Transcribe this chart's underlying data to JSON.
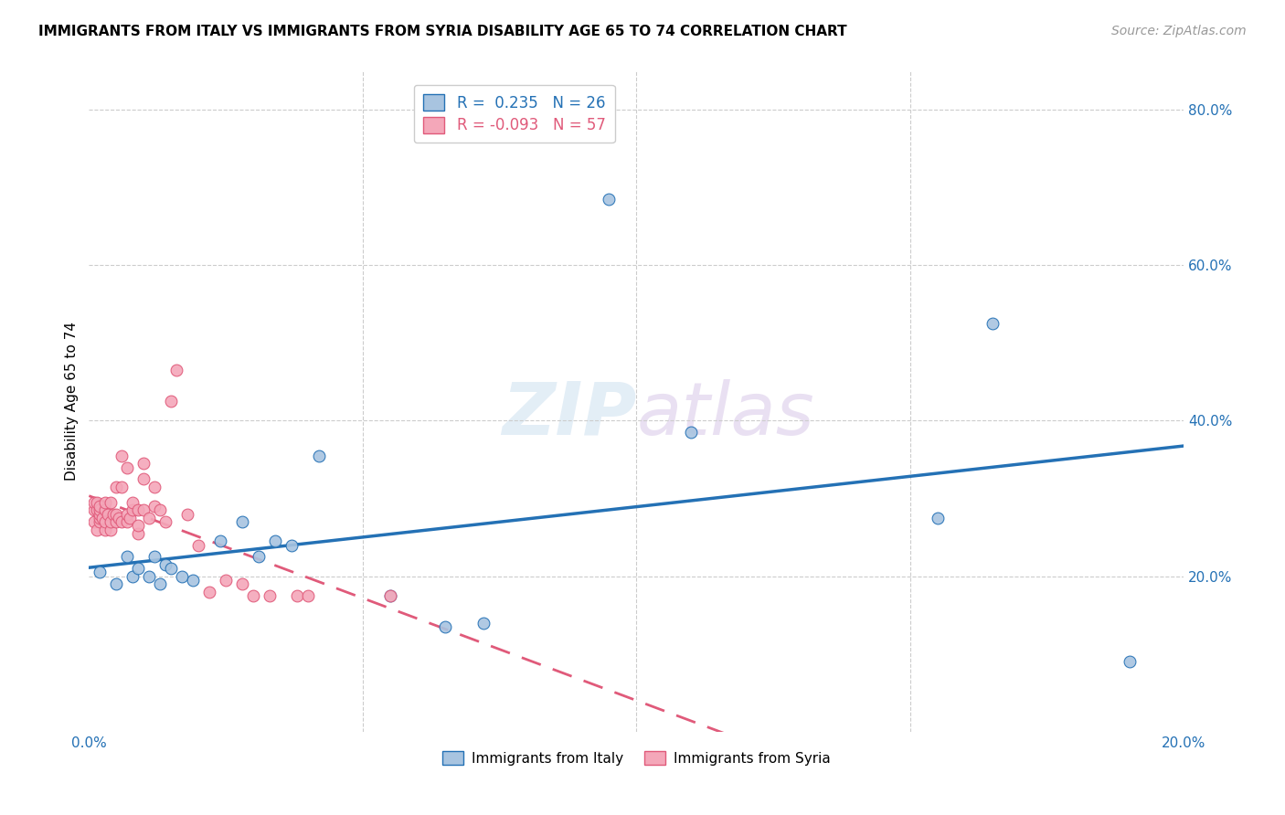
{
  "title": "IMMIGRANTS FROM ITALY VS IMMIGRANTS FROM SYRIA DISABILITY AGE 65 TO 74 CORRELATION CHART",
  "source": "Source: ZipAtlas.com",
  "ylabel": "Disability Age 65 to 74",
  "xlim": [
    0.0,
    0.2
  ],
  "ylim": [
    0.0,
    0.85
  ],
  "xticks": [
    0.0,
    0.05,
    0.1,
    0.15,
    0.2
  ],
  "yticks": [
    0.2,
    0.4,
    0.6,
    0.8
  ],
  "xtick_labels": [
    "0.0%",
    "",
    "",
    "",
    "20.0%"
  ],
  "ytick_labels": [
    "20.0%",
    "40.0%",
    "60.0%",
    "80.0%"
  ],
  "legend_italy": "Immigrants from Italy",
  "legend_syria": "Immigrants from Syria",
  "R_italy": 0.235,
  "N_italy": 26,
  "R_syria": -0.093,
  "N_syria": 57,
  "color_italy": "#a8c4e0",
  "color_italy_line": "#2471b5",
  "color_syria": "#f4a7b9",
  "color_syria_line": "#e05a7a",
  "italy_x": [
    0.002,
    0.005,
    0.007,
    0.008,
    0.009,
    0.011,
    0.012,
    0.013,
    0.014,
    0.015,
    0.017,
    0.019,
    0.024,
    0.028,
    0.031,
    0.034,
    0.037,
    0.042,
    0.055,
    0.065,
    0.072,
    0.095,
    0.11,
    0.155,
    0.165,
    0.19
  ],
  "italy_y": [
    0.205,
    0.19,
    0.225,
    0.2,
    0.21,
    0.2,
    0.225,
    0.19,
    0.215,
    0.21,
    0.2,
    0.195,
    0.245,
    0.27,
    0.225,
    0.245,
    0.24,
    0.355,
    0.175,
    0.135,
    0.14,
    0.685,
    0.385,
    0.275,
    0.525,
    0.09
  ],
  "syria_x": [
    0.001,
    0.001,
    0.001,
    0.0015,
    0.0015,
    0.0015,
    0.002,
    0.002,
    0.002,
    0.002,
    0.002,
    0.0025,
    0.003,
    0.003,
    0.003,
    0.003,
    0.0035,
    0.004,
    0.004,
    0.004,
    0.0045,
    0.005,
    0.005,
    0.005,
    0.0055,
    0.006,
    0.006,
    0.006,
    0.007,
    0.007,
    0.007,
    0.0075,
    0.008,
    0.008,
    0.009,
    0.009,
    0.009,
    0.01,
    0.01,
    0.01,
    0.011,
    0.012,
    0.012,
    0.013,
    0.014,
    0.015,
    0.016,
    0.018,
    0.02,
    0.022,
    0.025,
    0.028,
    0.03,
    0.033,
    0.038,
    0.04,
    0.055
  ],
  "syria_y": [
    0.27,
    0.285,
    0.295,
    0.26,
    0.285,
    0.295,
    0.27,
    0.275,
    0.28,
    0.285,
    0.29,
    0.275,
    0.26,
    0.27,
    0.285,
    0.295,
    0.28,
    0.26,
    0.27,
    0.295,
    0.28,
    0.27,
    0.28,
    0.315,
    0.275,
    0.27,
    0.315,
    0.355,
    0.27,
    0.28,
    0.34,
    0.275,
    0.285,
    0.295,
    0.255,
    0.265,
    0.285,
    0.325,
    0.345,
    0.285,
    0.275,
    0.315,
    0.29,
    0.285,
    0.27,
    0.425,
    0.465,
    0.28,
    0.24,
    0.18,
    0.195,
    0.19,
    0.175,
    0.175,
    0.175,
    0.175,
    0.175
  ]
}
